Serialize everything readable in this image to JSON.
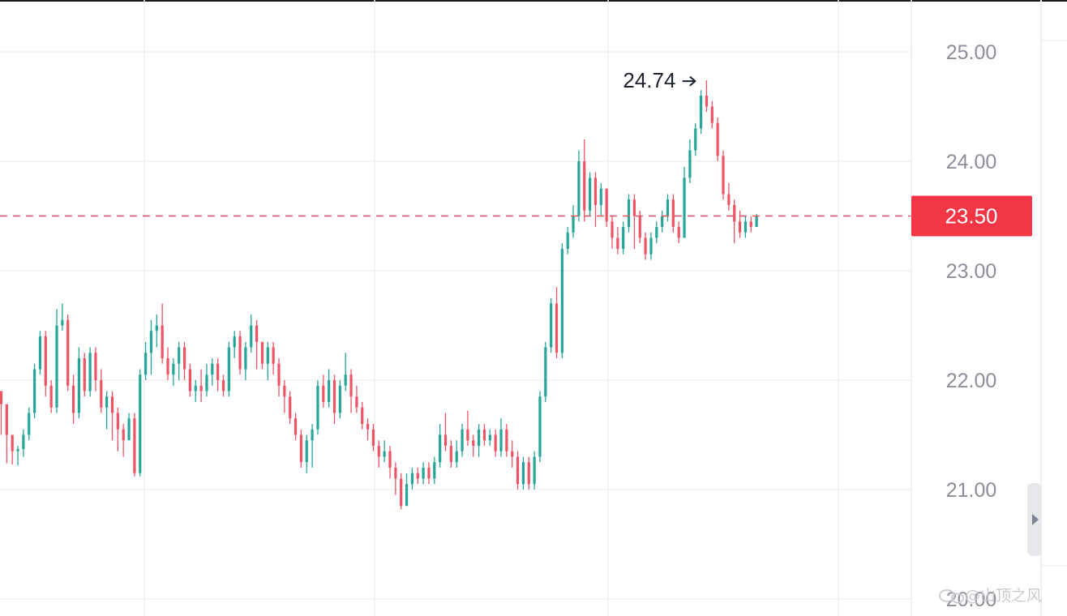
{
  "chart_data": {
    "type": "candlestick",
    "y_axis": {
      "ticks": [
        "25.00",
        "24.00",
        "23.00",
        "22.00",
        "21.00",
        "20.00"
      ],
      "range": [
        20.0,
        25.4
      ]
    },
    "current_price": {
      "value": 23.5,
      "label": "23.50"
    },
    "high_marker": {
      "value": 24.74,
      "label": "24.74"
    },
    "grid": true,
    "colors": {
      "up": "#26a69a",
      "down": "#ef5366",
      "price_tag": "#f23645",
      "grid": "#f0f1f4",
      "axis_text": "#8c8f99"
    },
    "candles": [
      [
        21.9,
        21.78,
        21.5,
        21.88
      ],
      [
        21.78,
        21.5,
        21.6,
        21.24
      ],
      [
        21.5,
        21.35,
        21.45,
        21.23
      ],
      [
        21.35,
        21.37,
        21.4,
        21.22
      ],
      [
        21.37,
        21.5,
        21.55,
        21.3
      ],
      [
        21.5,
        21.7,
        21.75,
        21.45
      ],
      [
        21.7,
        22.1,
        22.15,
        21.65
      ],
      [
        22.1,
        22.4,
        22.45,
        22.05
      ],
      [
        22.4,
        21.95,
        22.45,
        21.85
      ],
      [
        21.95,
        21.75,
        22.0,
        21.7
      ],
      [
        21.75,
        22.5,
        22.65,
        21.7
      ],
      [
        22.5,
        22.55,
        22.7,
        22.45
      ],
      [
        22.55,
        21.95,
        22.6,
        21.9
      ],
      [
        21.95,
        21.7,
        22.05,
        21.6
      ],
      [
        21.7,
        22.2,
        22.3,
        21.65
      ],
      [
        22.2,
        21.9,
        22.25,
        21.85
      ],
      [
        21.9,
        22.25,
        22.3,
        21.85
      ],
      [
        22.25,
        22.0,
        22.3,
        21.9
      ],
      [
        22.0,
        21.75,
        22.1,
        21.7
      ],
      [
        21.75,
        21.85,
        21.9,
        21.55
      ],
      [
        21.85,
        21.7,
        21.9,
        21.45
      ],
      [
        21.7,
        21.55,
        21.75,
        21.35
      ],
      [
        21.55,
        21.45,
        21.6,
        21.3
      ],
      [
        21.45,
        21.65,
        21.7,
        21.45
      ],
      [
        21.65,
        21.15,
        21.7,
        21.12
      ],
      [
        21.15,
        22.05,
        22.1,
        21.12
      ],
      [
        22.05,
        22.25,
        22.35,
        22.0
      ],
      [
        22.25,
        22.45,
        22.55,
        22.05
      ],
      [
        22.45,
        22.5,
        22.6,
        22.3
      ],
      [
        22.5,
        22.2,
        22.7,
        22.15
      ],
      [
        22.2,
        22.05,
        22.3,
        22.0
      ],
      [
        22.05,
        22.15,
        22.2,
        21.95
      ],
      [
        22.15,
        22.3,
        22.35,
        22.0
      ],
      [
        22.3,
        22.1,
        22.35,
        22.0
      ],
      [
        22.1,
        21.9,
        22.15,
        21.85
      ],
      [
        21.9,
        21.95,
        22.0,
        21.8
      ],
      [
        21.95,
        21.9,
        22.1,
        21.8
      ],
      [
        21.9,
        22.05,
        22.15,
        21.85
      ],
      [
        22.05,
        22.15,
        22.2,
        21.95
      ],
      [
        22.15,
        22.0,
        22.2,
        21.9
      ],
      [
        22.0,
        21.9,
        22.05,
        21.85
      ],
      [
        21.9,
        22.3,
        22.35,
        21.85
      ],
      [
        22.3,
        22.4,
        22.45,
        22.2
      ],
      [
        22.4,
        22.1,
        22.45,
        22.05
      ],
      [
        22.1,
        22.3,
        22.35,
        22.0
      ],
      [
        22.3,
        22.5,
        22.6,
        22.25
      ],
      [
        22.5,
        22.35,
        22.55,
        22.1
      ],
      [
        22.35,
        22.15,
        22.35,
        22.1
      ],
      [
        22.15,
        22.3,
        22.35,
        22.0
      ],
      [
        22.3,
        22.15,
        22.35,
        22.05
      ],
      [
        22.15,
        21.95,
        22.2,
        21.85
      ],
      [
        21.95,
        21.85,
        22.0,
        21.7
      ],
      [
        21.85,
        21.65,
        21.9,
        21.6
      ],
      [
        21.65,
        21.5,
        21.7,
        21.45
      ],
      [
        21.5,
        21.25,
        21.55,
        21.2
      ],
      [
        21.25,
        21.45,
        21.5,
        21.15
      ],
      [
        21.45,
        21.55,
        21.6,
        21.2
      ],
      [
        21.55,
        21.95,
        22.0,
        21.5
      ],
      [
        21.95,
        21.8,
        22.05,
        21.75
      ],
      [
        21.8,
        22.0,
        22.1,
        21.75
      ],
      [
        22.0,
        21.7,
        22.05,
        21.6
      ],
      [
        21.7,
        21.95,
        22.0,
        21.65
      ],
      [
        21.95,
        22.05,
        22.25,
        21.9
      ],
      [
        22.05,
        21.85,
        22.1,
        21.7
      ],
      [
        21.85,
        21.75,
        21.95,
        21.7
      ],
      [
        21.75,
        21.6,
        21.8,
        21.55
      ],
      [
        21.6,
        21.55,
        21.65,
        21.45
      ],
      [
        21.55,
        21.4,
        21.6,
        21.35
      ],
      [
        21.4,
        21.3,
        21.45,
        21.2
      ],
      [
        21.3,
        21.35,
        21.45,
        21.25
      ],
      [
        21.35,
        21.2,
        21.4,
        21.1
      ],
      [
        21.2,
        21.1,
        21.25,
        20.95
      ],
      [
        21.1,
        20.85,
        21.15,
        20.82
      ],
      [
        20.85,
        21.05,
        21.15,
        20.9
      ],
      [
        21.05,
        21.15,
        21.2,
        21.0
      ],
      [
        21.15,
        21.1,
        21.2,
        21.05
      ],
      [
        21.1,
        21.2,
        21.25,
        21.05
      ],
      [
        21.2,
        21.1,
        21.25,
        21.05
      ],
      [
        21.1,
        21.25,
        21.3,
        21.05
      ],
      [
        21.25,
        21.5,
        21.6,
        21.2
      ],
      [
        21.5,
        21.4,
        21.7,
        21.35
      ],
      [
        21.4,
        21.25,
        21.45,
        21.2
      ],
      [
        21.25,
        21.35,
        21.45,
        21.2
      ],
      [
        21.35,
        21.55,
        21.6,
        21.3
      ],
      [
        21.55,
        21.45,
        21.72,
        21.4
      ],
      [
        21.45,
        21.4,
        21.5,
        21.3
      ],
      [
        21.4,
        21.55,
        21.6,
        21.3
      ],
      [
        21.55,
        21.45,
        21.6,
        21.4
      ],
      [
        21.45,
        21.5,
        21.55,
        21.4
      ],
      [
        21.5,
        21.35,
        21.55,
        21.3
      ],
      [
        21.35,
        21.55,
        21.65,
        21.3
      ],
      [
        21.55,
        21.35,
        21.6,
        21.3
      ],
      [
        21.35,
        21.3,
        21.45,
        21.2
      ],
      [
        21.3,
        21.05,
        21.35,
        21.0
      ],
      [
        21.05,
        21.25,
        21.3,
        21.0
      ],
      [
        21.25,
        21.05,
        21.3,
        21.0
      ],
      [
        21.05,
        21.3,
        21.35,
        21.0
      ],
      [
        21.3,
        21.85,
        21.9,
        21.25
      ],
      [
        21.85,
        22.3,
        22.35,
        21.8
      ],
      [
        22.3,
        22.7,
        22.75,
        22.25
      ],
      [
        22.7,
        22.25,
        22.85,
        22.2
      ],
      [
        22.25,
        23.2,
        23.25,
        22.2
      ],
      [
        23.2,
        23.35,
        23.4,
        23.15
      ],
      [
        23.35,
        23.5,
        23.6,
        23.3
      ],
      [
        23.5,
        24.0,
        24.1,
        23.45
      ],
      [
        24.0,
        23.55,
        24.2,
        23.45
      ],
      [
        23.55,
        23.85,
        23.9,
        23.5
      ],
      [
        23.85,
        23.6,
        23.9,
        23.4
      ],
      [
        23.6,
        23.75,
        23.8,
        23.5
      ],
      [
        23.75,
        23.45,
        23.75,
        23.4
      ],
      [
        23.45,
        23.3,
        23.5,
        23.2
      ],
      [
        23.3,
        23.2,
        23.4,
        23.15
      ],
      [
        23.2,
        23.4,
        23.45,
        23.15
      ],
      [
        23.4,
        23.65,
        23.7,
        23.35
      ],
      [
        23.65,
        23.5,
        23.7,
        23.2
      ],
      [
        23.5,
        23.3,
        23.55,
        23.25
      ],
      [
        23.3,
        23.15,
        23.35,
        23.1
      ],
      [
        23.15,
        23.3,
        23.35,
        23.1
      ],
      [
        23.3,
        23.4,
        23.45,
        23.25
      ],
      [
        23.4,
        23.5,
        23.55,
        23.35
      ],
      [
        23.5,
        23.65,
        23.7,
        23.45
      ],
      [
        23.65,
        23.4,
        23.7,
        23.35
      ],
      [
        23.4,
        23.3,
        23.45,
        23.25
      ],
      [
        23.3,
        23.85,
        23.95,
        23.3
      ],
      [
        23.85,
        24.1,
        24.2,
        23.8
      ],
      [
        24.1,
        24.3,
        24.35,
        24.05
      ],
      [
        24.3,
        24.6,
        24.65,
        24.25
      ],
      [
        24.6,
        24.5,
        24.74,
        24.45
      ],
      [
        24.5,
        24.35,
        24.55,
        24.3
      ],
      [
        24.35,
        24.05,
        24.4,
        24.0
      ],
      [
        24.05,
        23.7,
        24.1,
        23.65
      ],
      [
        23.7,
        23.6,
        23.8,
        23.55
      ],
      [
        23.6,
        23.45,
        23.65,
        23.25
      ],
      [
        23.45,
        23.35,
        23.55,
        23.3
      ],
      [
        23.35,
        23.45,
        23.5,
        23.3
      ],
      [
        23.45,
        23.4,
        23.5,
        23.35
      ],
      [
        23.4,
        23.5,
        23.52,
        23.4
      ]
    ]
  },
  "watermark": {
    "text": "@山顶之风",
    "icon": "chat-bubble-icon"
  },
  "scroll_handle": {
    "icon": "caret-right-icon"
  }
}
